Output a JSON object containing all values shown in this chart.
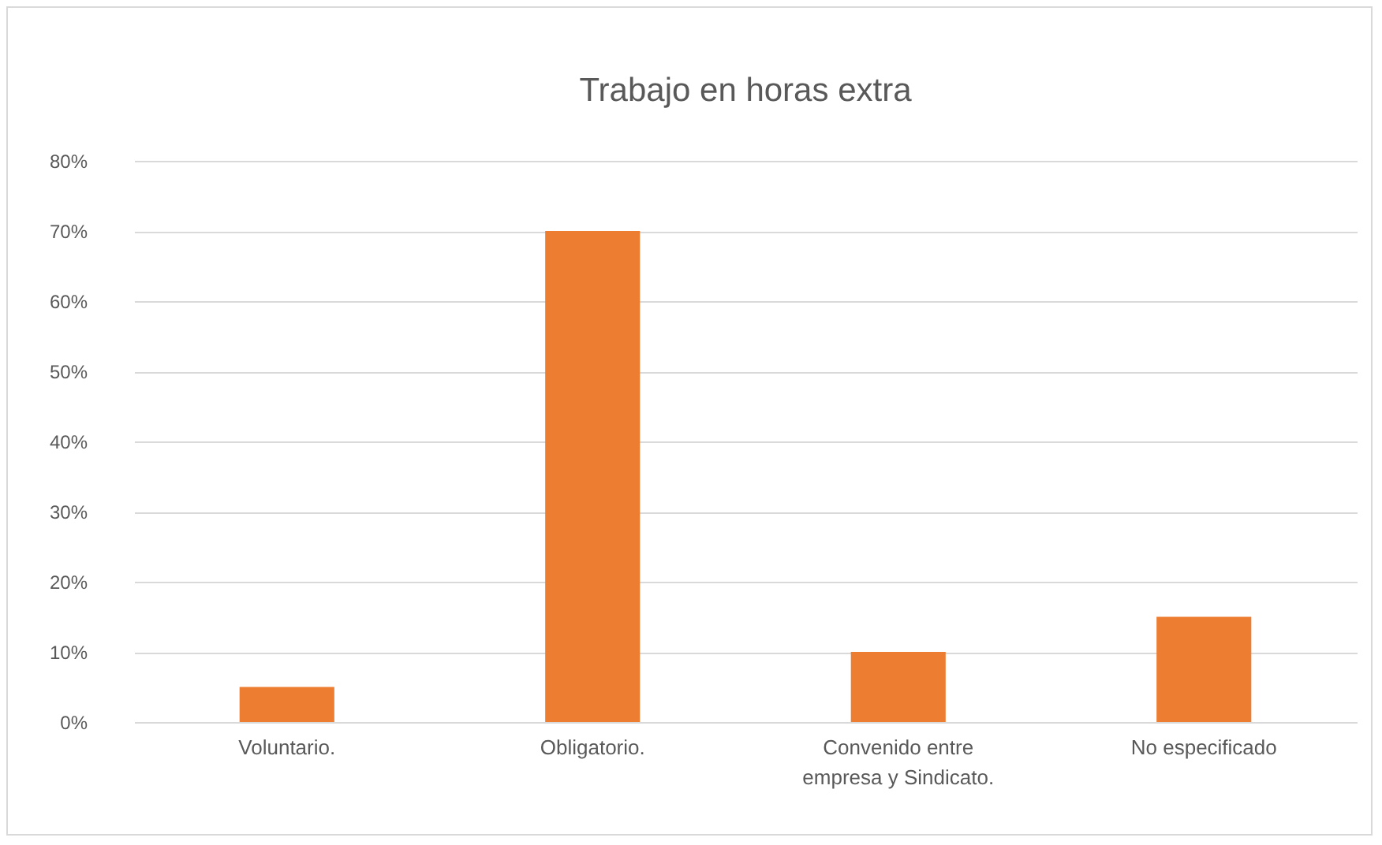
{
  "chart_data": {
    "type": "bar",
    "title": "Trabajo en horas extra",
    "categories": [
      "Voluntario.",
      "Obligatorio.",
      "Convenido entre empresa y Sindicato.",
      "No especificado"
    ],
    "values": [
      5,
      70,
      10,
      15
    ],
    "color": "#ed7d31",
    "ylim": [
      0,
      80
    ],
    "yticks": [
      {
        "value": 0,
        "label": "0%"
      },
      {
        "value": 10,
        "label": "10%"
      },
      {
        "value": 20,
        "label": "20%"
      },
      {
        "value": 30,
        "label": "30%"
      },
      {
        "value": 40,
        "label": "40%"
      },
      {
        "value": 50,
        "label": "50%"
      },
      {
        "value": 60,
        "label": "60%"
      },
      {
        "value": 70,
        "label": "70%"
      },
      {
        "value": 80,
        "label": "80%"
      }
    ],
    "grid": "y"
  }
}
